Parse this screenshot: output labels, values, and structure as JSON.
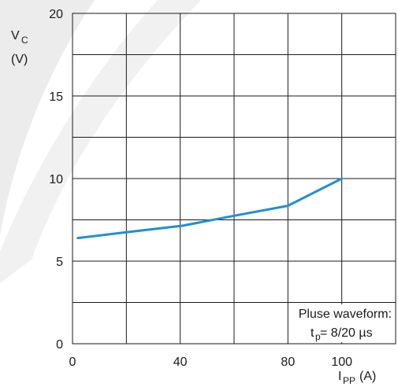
{
  "chart_data": {
    "type": "line",
    "x": [
      2,
      20,
      41,
      60,
      80,
      100
    ],
    "series": [
      {
        "values": [
          6.4,
          6.75,
          7.15,
          7.75,
          8.35,
          10.0
        ]
      }
    ],
    "xlim": [
      0,
      120
    ],
    "ylim": [
      0,
      20
    ],
    "x_ticks": [
      "0",
      "40",
      "80",
      "100"
    ],
    "x_tick_values": [
      0,
      40,
      80,
      100
    ],
    "y_ticks": [
      "0",
      "5",
      "10",
      "15",
      "20"
    ],
    "y_tick_values": [
      0,
      5,
      10,
      15,
      20
    ],
    "ylabel": {
      "main": "V",
      "sub": "C",
      "unit": "(V)"
    },
    "xlabel": {
      "main": "I",
      "sub": "PP",
      "unit": "(A)"
    },
    "annotation": {
      "line1": "Pluse waveform:",
      "main": "t",
      "sub": "p",
      "rest": " = 8/20 µs"
    },
    "grid": true,
    "line_color": "#1e90d6",
    "watermark_color": "#ececec"
  }
}
